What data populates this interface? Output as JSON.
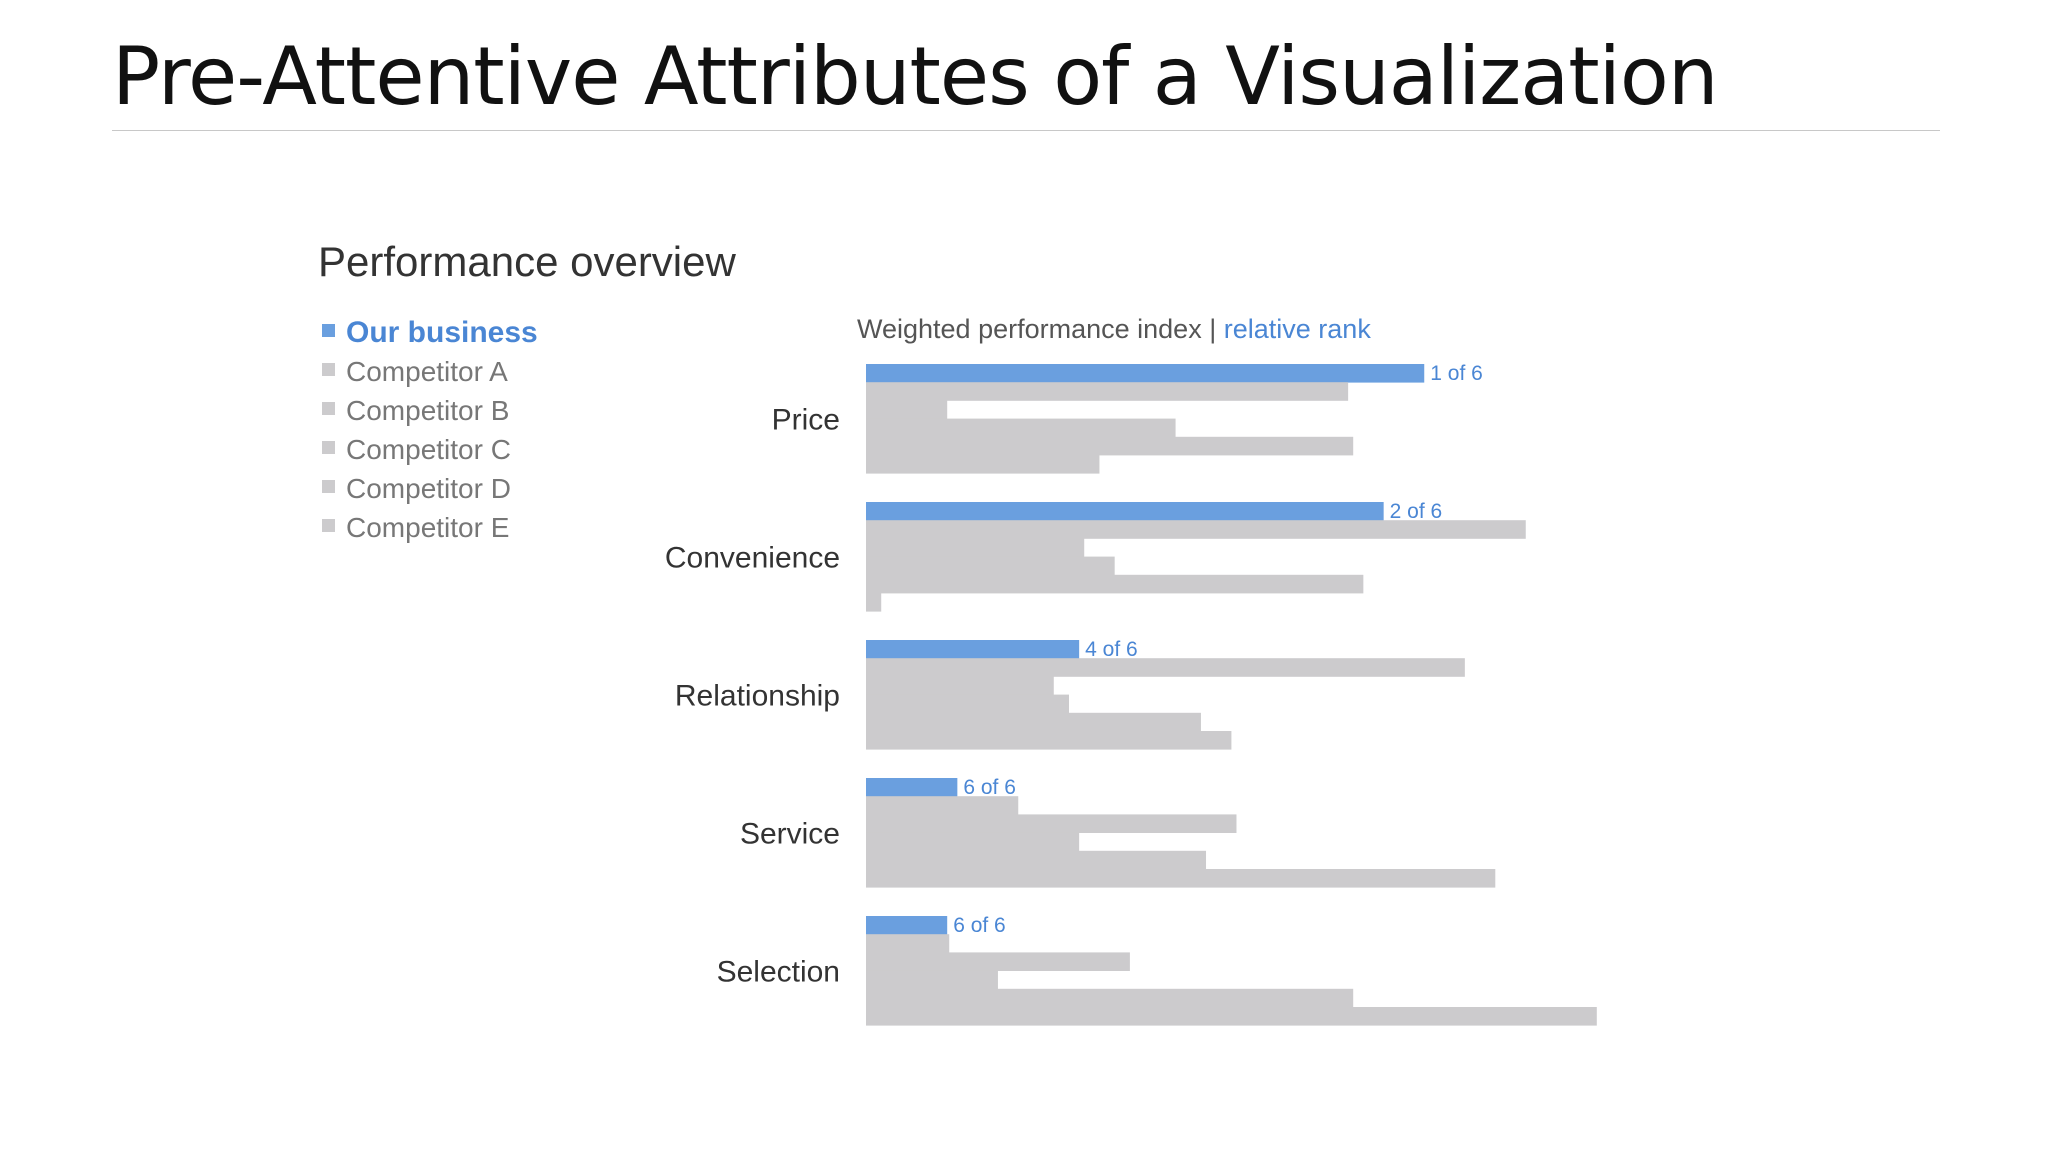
{
  "slide": {
    "title": "Pre-Attentive Attributes of a Visualization"
  },
  "chart_data": {
    "type": "bar",
    "orientation": "horizontal",
    "title": "Performance overview",
    "subtitle": "Weighted performance index",
    "subtitle_separator": "|",
    "subtitle_rank_label": "relative rank",
    "categories": [
      "Price",
      "Convenience",
      "Relationship",
      "Service",
      "Selection"
    ],
    "series": [
      {
        "name": "Our business",
        "values": [
          55,
          51,
          21,
          9,
          8
        ],
        "ranks": [
          "1 of 6",
          "2 of 6",
          "4 of 6",
          "6 of 6",
          "6 of 6"
        ]
      },
      {
        "name": "Competitor A",
        "values": [
          47.5,
          65,
          59,
          15,
          8.2
        ]
      },
      {
        "name": "Competitor B",
        "values": [
          8,
          21.5,
          18.5,
          36.5,
          26
        ]
      },
      {
        "name": "Competitor C",
        "values": [
          30.5,
          24.5,
          20,
          21,
          13
        ]
      },
      {
        "name": "Competitor D",
        "values": [
          48,
          49,
          33,
          33.5,
          48
        ]
      },
      {
        "name": "Competitor E",
        "values": [
          23,
          1.5,
          36,
          62,
          72
        ]
      }
    ],
    "xlim": [
      0,
      100
    ],
    "grid": false,
    "legend": "left",
    "colors": {
      "highlight": "#6a9fdf",
      "muted": "#cccbcd",
      "highlight_text": "#4a86d4",
      "muted_text": "#777777"
    }
  }
}
